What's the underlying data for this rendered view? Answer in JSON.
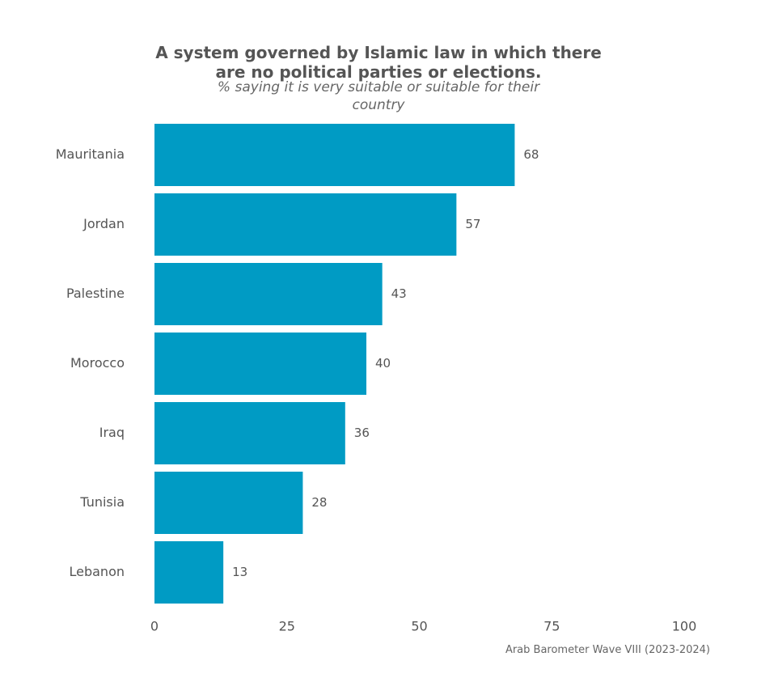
{
  "chart_data": {
    "type": "bar",
    "orientation": "horizontal",
    "title_lines": [
      "A system governed by Islamic law in which there",
      "are no political parties or elections."
    ],
    "subtitle_lines": [
      "% saying it is very suitable or suitable for their",
      "country"
    ],
    "categories": [
      "Mauritania",
      "Jordan",
      "Palestine",
      "Morocco",
      "Iraq",
      "Tunisia",
      "Lebanon"
    ],
    "values": [
      68,
      57,
      43,
      40,
      36,
      28,
      13
    ],
    "data_labels": [
      "68",
      "57",
      "43",
      "40",
      "36",
      "28",
      "13"
    ],
    "xlim": [
      0,
      100
    ],
    "x_ticks": [
      0,
      25,
      50,
      75,
      100
    ],
    "x_tick_labels": [
      "0",
      "25",
      "50",
      "75",
      "100"
    ],
    "grid": false,
    "legend": "none",
    "bar_color": "#009BC4",
    "caption": "Arab Barometer Wave VIII (2023-2024)"
  }
}
